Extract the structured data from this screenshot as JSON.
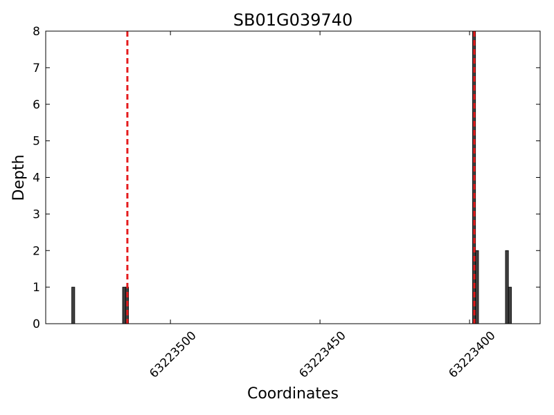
{
  "chart_data": {
    "type": "bar",
    "title": "SB01G039740",
    "x_label": "Coordinates",
    "y_label": "Depth",
    "x": [
      63223533,
      63223516,
      63223515,
      63223399,
      63223398,
      63223388,
      63223387
    ],
    "values": [
      1,
      1,
      1,
      8,
      2,
      2,
      1
    ],
    "bar_width": 1,
    "color": "#404040",
    "edge_color": "#000000",
    "xlim": [
      63223541.7,
      63223376.4
    ],
    "xticks": [
      63223500,
      63223450,
      63223400
    ],
    "ylim": [
      0,
      8
    ],
    "yticks": [
      0,
      1,
      2,
      3,
      4,
      5,
      6,
      7,
      8
    ],
    "vlines": [
      63223514.4,
      63223398.4
    ],
    "vline_color": "#e41a1c",
    "grid": false
  }
}
